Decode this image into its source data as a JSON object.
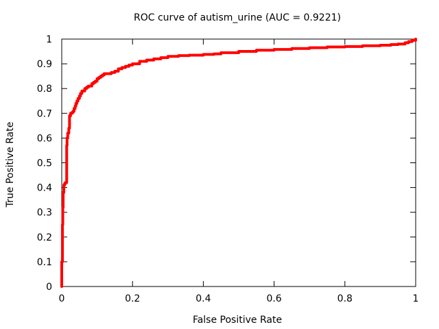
{
  "chart_data": {
    "type": "line",
    "title": "ROC curve of autism_urine (AUC = 0.9221)",
    "xlabel": "False Positive Rate",
    "ylabel": "True Positive Rate",
    "xlim": [
      0,
      1
    ],
    "ylim": [
      0,
      1
    ],
    "x_ticks": [
      {
        "value": 0,
        "label": "0"
      },
      {
        "value": 0.2,
        "label": "0.2"
      },
      {
        "value": 0.4,
        "label": "0.4"
      },
      {
        "value": 0.6,
        "label": "0.6"
      },
      {
        "value": 0.8,
        "label": "0.8"
      },
      {
        "value": 1,
        "label": "1"
      }
    ],
    "y_ticks": [
      {
        "value": 0,
        "label": "0"
      },
      {
        "value": 0.1,
        "label": "0.1"
      },
      {
        "value": 0.2,
        "label": "0.2"
      },
      {
        "value": 0.3,
        "label": "0.3"
      },
      {
        "value": 0.4,
        "label": "0.4"
      },
      {
        "value": 0.5,
        "label": "0.5"
      },
      {
        "value": 0.6,
        "label": "0.6"
      },
      {
        "value": 0.7,
        "label": "0.7"
      },
      {
        "value": 0.8,
        "label": "0.8"
      },
      {
        "value": 0.9,
        "label": "0.9"
      },
      {
        "value": 1,
        "label": "1"
      }
    ],
    "grid": false,
    "series": [
      {
        "color": "#ff0000",
        "x": [
          0,
          0,
          0.002,
          0.003,
          0.004,
          0.006,
          0.008,
          0.01,
          0.012,
          0.014,
          0.015,
          0.017,
          0.02,
          0.022,
          0.025,
          0.028,
          0.03,
          0.033,
          0.035,
          0.038,
          0.04,
          0.043,
          0.046,
          0.05,
          0.053,
          0.057,
          0.06,
          0.065,
          0.07,
          0.075,
          0.08,
          0.085,
          0.09,
          0.095,
          0.1,
          0.105,
          0.11,
          0.115,
          0.12,
          0.13,
          0.14,
          0.15,
          0.16,
          0.17,
          0.18,
          0.19,
          0.2,
          0.22,
          0.24,
          0.26,
          0.28,
          0.3,
          0.33,
          0.36,
          0.4,
          0.43,
          0.45,
          0.5,
          0.55,
          0.6,
          0.65,
          0.7,
          0.75,
          0.8,
          0.85,
          0.9,
          0.93,
          0.95,
          0.97,
          0.98,
          0.99,
          1
        ],
        "y": [
          0,
          0.1,
          0.25,
          0.32,
          0.38,
          0.41,
          0.415,
          0.42,
          0.42,
          0.57,
          0.6,
          0.62,
          0.64,
          0.69,
          0.7,
          0.7,
          0.705,
          0.71,
          0.72,
          0.73,
          0.74,
          0.75,
          0.76,
          0.77,
          0.78,
          0.79,
          0.79,
          0.8,
          0.805,
          0.81,
          0.81,
          0.82,
          0.825,
          0.83,
          0.84,
          0.845,
          0.85,
          0.855,
          0.86,
          0.86,
          0.865,
          0.87,
          0.88,
          0.885,
          0.89,
          0.895,
          0.9,
          0.91,
          0.915,
          0.92,
          0.925,
          0.93,
          0.933,
          0.935,
          0.938,
          0.94,
          0.945,
          0.95,
          0.955,
          0.958,
          0.962,
          0.965,
          0.968,
          0.97,
          0.973,
          0.975,
          0.978,
          0.98,
          0.985,
          0.99,
          0.995,
          1
        ]
      }
    ]
  }
}
